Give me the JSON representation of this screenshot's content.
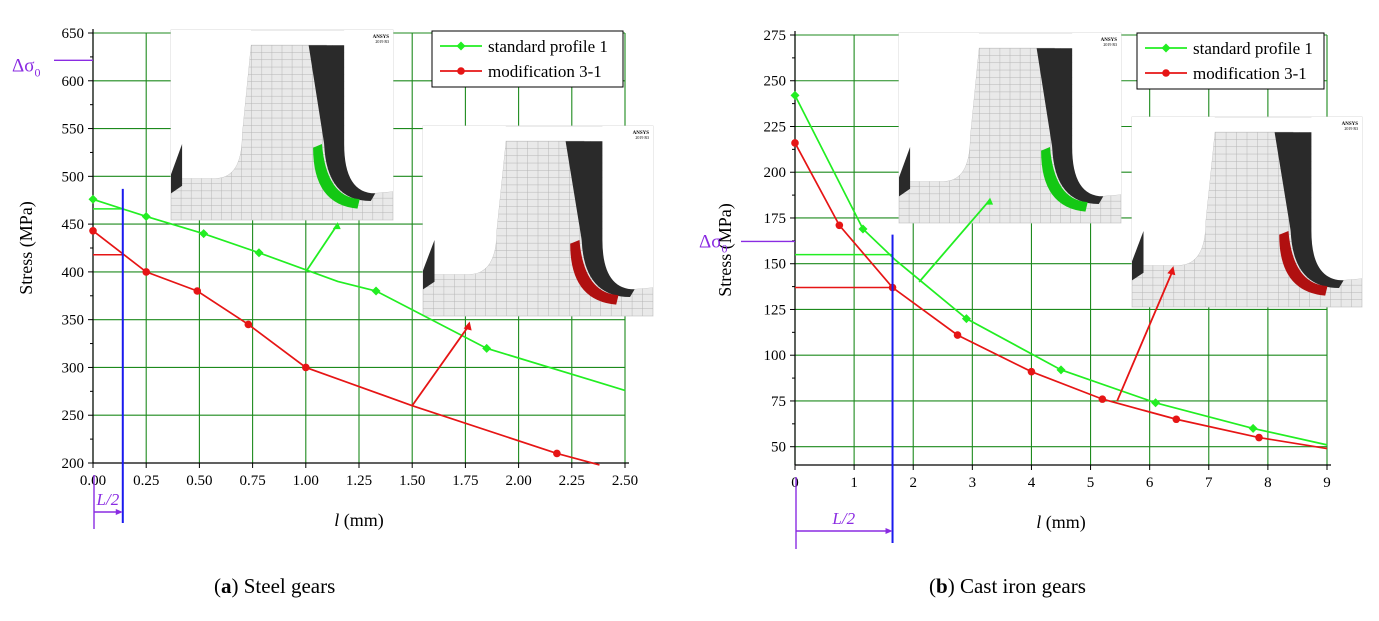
{
  "chart_data": [
    {
      "type": "line",
      "xlabel_var": "l",
      "xlabel_unit": "(mm)",
      "ylabel": "Stress (MPa)",
      "xlim": [
        0,
        2.5
      ],
      "ylim": [
        200,
        650
      ],
      "x_ticks": [
        0,
        0.25,
        0.5,
        0.75,
        1.0,
        1.25,
        1.5,
        1.75,
        2.0,
        2.25,
        2.5
      ],
      "x_tick_labels": [
        "0.00",
        "0.25",
        "0.50",
        "0.75",
        "1.00",
        "1.25",
        "1.50",
        "1.75",
        "2.00",
        "2.25",
        "2.50"
      ],
      "y_ticks": [
        200,
        250,
        300,
        350,
        400,
        450,
        500,
        550,
        600,
        650
      ],
      "y_tick_labels": [
        "200",
        "250",
        "300",
        "350",
        "400",
        "450",
        "500",
        "550",
        "600",
        "650"
      ],
      "grid": true,
      "legend_position": "top-right",
      "series": [
        {
          "name": "standard profile 1",
          "color": "#22ee22",
          "marker": "diamond",
          "x": [
            0.0,
            0.25,
            0.52,
            0.78,
            1.15,
            1.33,
            1.85,
            2.5
          ],
          "y": [
            476,
            458,
            440,
            420,
            390,
            380,
            320,
            276
          ],
          "marker_indices": [
            0,
            1,
            2,
            3,
            5,
            6
          ]
        },
        {
          "name": "modification 3-1",
          "color": "#e61515",
          "marker": "circle",
          "x": [
            0.0,
            0.25,
            0.49,
            0.73,
            1.0,
            1.5,
            2.18,
            2.38
          ],
          "y": [
            443,
            400,
            380,
            345,
            300,
            260,
            210,
            198
          ],
          "marker_indices": [
            0,
            1,
            2,
            3,
            4,
            6
          ]
        }
      ],
      "annotations": {
        "delta_sigma_label": "Δσ",
        "delta_sigma_subscript": "0",
        "delta_sigma_value": 612,
        "half_length_label": "L/2",
        "half_length_value": 0.14,
        "stress_at_half_length": {
          "standard": 466,
          "modification": 418
        }
      }
    },
    {
      "type": "line",
      "xlabel_var": "l",
      "xlabel_unit": "(mm)",
      "ylabel": "Stress (MPa)",
      "xlim": [
        0,
        9
      ],
      "ylim": [
        40,
        275
      ],
      "x_ticks": [
        0,
        1,
        2,
        3,
        4,
        5,
        6,
        7,
        8,
        9
      ],
      "x_tick_labels": [
        "0",
        "1",
        "2",
        "3",
        "4",
        "5",
        "6",
        "7",
        "8",
        "9"
      ],
      "y_ticks": [
        50,
        75,
        100,
        125,
        150,
        175,
        200,
        225,
        250,
        275
      ],
      "y_tick_labels": [
        "50",
        "75",
        "100",
        "125",
        "150",
        "175",
        "200",
        "225",
        "250",
        "275"
      ],
      "grid": true,
      "legend_position": "top-right",
      "series": [
        {
          "name": "standard profile 1",
          "color": "#22ee22",
          "marker": "diamond",
          "x": [
            0.0,
            1.15,
            1.7,
            2.9,
            4.5,
            6.1,
            7.75,
            9.0
          ],
          "y": [
            242,
            169,
            152,
            120,
            92,
            74,
            60,
            51
          ],
          "marker_indices": [
            0,
            1,
            3,
            4,
            5,
            6
          ]
        },
        {
          "name": "modification 3-1",
          "color": "#e61515",
          "marker": "circle",
          "x": [
            0.0,
            0.75,
            1.65,
            2.75,
            4.0,
            5.2,
            6.45,
            7.85,
            9.0
          ],
          "y": [
            216,
            171,
            137,
            111,
            91,
            76,
            65,
            55,
            49
          ],
          "marker_indices": [
            0,
            1,
            2,
            3,
            4,
            5,
            6,
            7
          ]
        }
      ],
      "annotations": {
        "delta_sigma_label": "Δσ",
        "delta_sigma_subscript": "0",
        "delta_sigma_value": 160,
        "half_length_label": "L/2",
        "half_length_value": 1.65,
        "stress_at_half_length": {
          "standard": 155,
          "modification": 137
        }
      }
    }
  ],
  "insets": {
    "badge": "ANSYS",
    "badge_sub": "2019 R3"
  },
  "captions": [
    {
      "letter": "a",
      "text": " Steel gears"
    },
    {
      "letter": "b",
      "text": " Cast iron gears"
    }
  ],
  "colors": {
    "grid": "#1d8a1d",
    "standard": "#22ee22",
    "modification": "#e61515",
    "half_length_line": "#1a1aee",
    "annotation_purple": "#8a2be2",
    "tooth_dark": "#2a2a2a",
    "mesh": "#b6b6b6"
  }
}
